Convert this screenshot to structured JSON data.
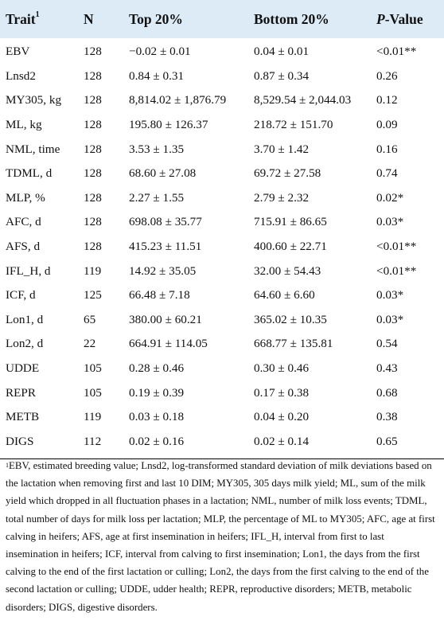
{
  "table": {
    "headers": {
      "trait": "Trait",
      "trait_sup": "1",
      "n": "N",
      "top": "Top 20%",
      "bottom": "Bottom 20%",
      "p_italic": "P",
      "p_rest": "-Value"
    },
    "rows": [
      {
        "trait": "EBV",
        "n": "128",
        "top": "−0.02 ± 0.01",
        "bottom": "0.04 ± 0.01",
        "p": "<0.01**"
      },
      {
        "trait": "Lnsd2",
        "n": "128",
        "top": "0.84 ± 0.31",
        "bottom": "0.87 ± 0.34",
        "p": "0.26"
      },
      {
        "trait": "MY305, kg",
        "n": "128",
        "top": "8,814.02 ± 1,876.79",
        "bottom": "8,529.54 ± 2,044.03",
        "p": "0.12"
      },
      {
        "trait": "ML, kg",
        "n": "128",
        "top": "195.80 ± 126.37",
        "bottom": "218.72 ± 151.70",
        "p": "0.09"
      },
      {
        "trait": "NML, time",
        "n": "128",
        "top": "3.53 ± 1.35",
        "bottom": "3.70 ± 1.42",
        "p": "0.16"
      },
      {
        "trait": "TDML, d",
        "n": "128",
        "top": "68.60 ± 27.08",
        "bottom": "69.72 ± 27.58",
        "p": "0.74"
      },
      {
        "trait": "MLP, %",
        "n": "128",
        "top": "2.27 ± 1.55",
        "bottom": "2.79 ± 2.32",
        "p": "0.02*"
      },
      {
        "trait": "AFC, d",
        "n": "128",
        "top": "698.08 ± 35.77",
        "bottom": "715.91 ± 86.65",
        "p": "0.03*"
      },
      {
        "trait": "AFS, d",
        "n": "128",
        "top": "415.23 ± 11.51",
        "bottom": "400.60 ± 22.71",
        "p": "<0.01**"
      },
      {
        "trait": "IFL_H, d",
        "n": "119",
        "top": "14.92 ± 35.05",
        "bottom": "32.00 ± 54.43",
        "p": "<0.01**"
      },
      {
        "trait": "ICF, d",
        "n": "125",
        "top": "66.48 ± 7.18",
        "bottom": "64.60 ± 6.60",
        "p": "0.03*"
      },
      {
        "trait": "Lon1, d",
        "n": "65",
        "top": "380.00 ± 60.21",
        "bottom": "365.02 ± 10.35",
        "p": "0.03*"
      },
      {
        "trait": "Lon2, d",
        "n": "22",
        "top": "664.91 ± 114.05",
        "bottom": "668.77 ± 135.81",
        "p": "0.54"
      },
      {
        "trait": "UDDE",
        "n": "105",
        "top": "0.28 ± 0.46",
        "bottom": "0.30 ± 0.46",
        "p": "0.43"
      },
      {
        "trait": "REPR",
        "n": "105",
        "top": "0.19 ± 0.39",
        "bottom": "0.17 ± 0.38",
        "p": "0.68"
      },
      {
        "trait": "METB",
        "n": "119",
        "top": "0.03 ± 0.18",
        "bottom": "0.04 ± 0.20",
        "p": "0.38"
      },
      {
        "trait": "DIGS",
        "n": "112",
        "top": "0.02 ± 0.16",
        "bottom": "0.02 ± 0.14",
        "p": "0.65"
      }
    ]
  },
  "footnote": {
    "marker": "1",
    "text": "EBV, estimated breeding value; Lnsd2, log-transformed standard deviation of milk deviations based on the lactation when removing first and last 10 DIM; MY305, 305 days milk yield; ML, sum of the milk yield which dropped in all fluctuation phases in a lactation; NML, number of milk loss events; TDML, total number of days for milk loss per lactation; MLP, the percentage of ML to MY305; AFC, age at first calving in heifers; AFS, age at first insemination in heifers; IFL_H, interval from first to last insemination in heifers; ICF, interval from calving to first insemination; Lon1, the days from the first calving to the end of the first lactation or culling; Lon2, the days from the first calving to the end of the second lactation or culling; UDDE, udder health; REPR, reproductive disorders; METB, metabolic disorders; DIGS, digestive disorders."
  }
}
